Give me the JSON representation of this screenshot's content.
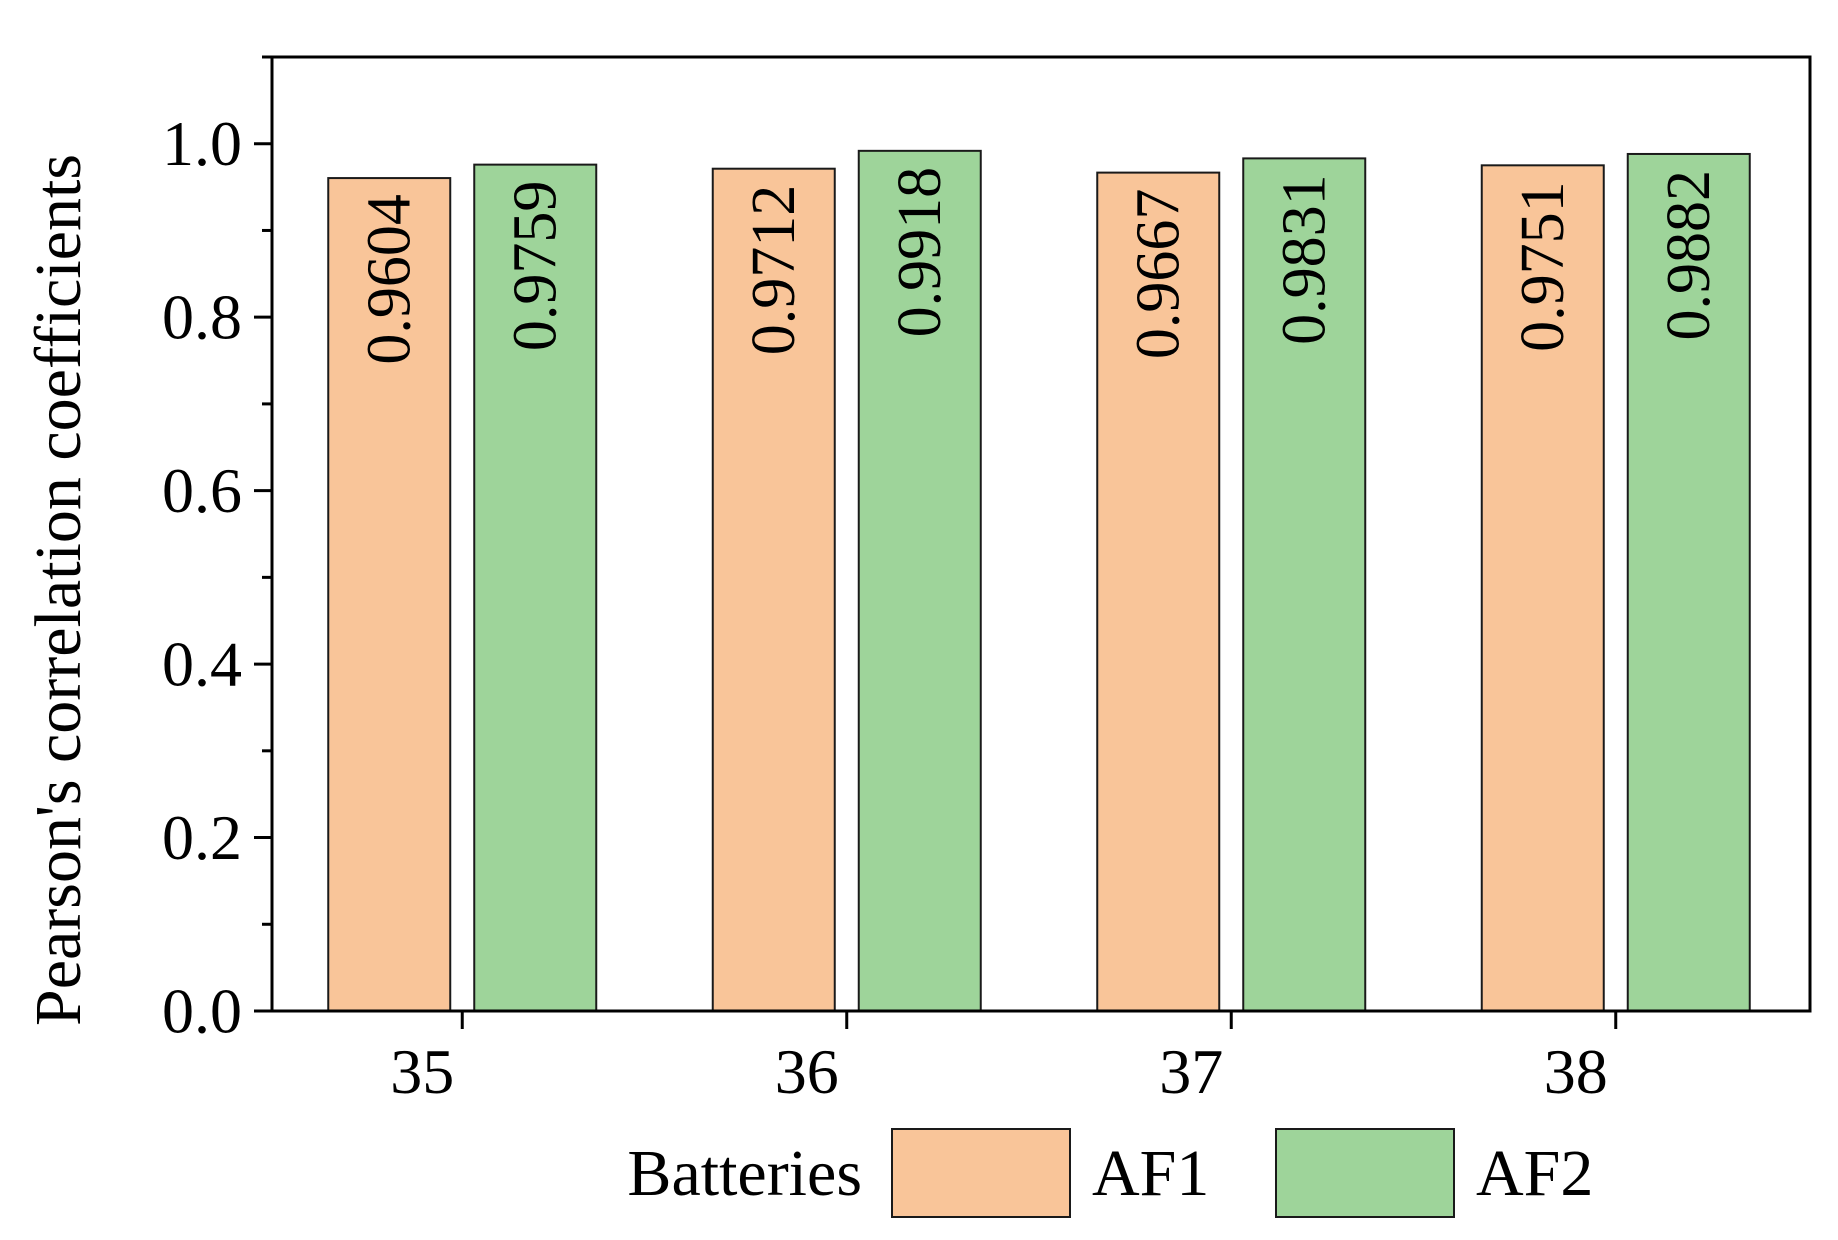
{
  "chart_data": {
    "type": "bar",
    "categories": [
      "35",
      "36",
      "37",
      "38"
    ],
    "series": [
      {
        "name": "AF1",
        "color": "#f9c599",
        "values": [
          0.9604,
          0.9712,
          0.9667,
          0.9751
        ],
        "labels": [
          "0.9604",
          "0.9712",
          "0.9667",
          "0.9751"
        ]
      },
      {
        "name": "AF2",
        "color": "#9ed49a",
        "values": [
          0.9759,
          0.9918,
          0.9831,
          0.9882
        ],
        "labels": [
          "0.9759",
          "0.9918",
          "0.9831",
          "0.9882"
        ]
      }
    ],
    "xlabel": "Batteries",
    "ylabel": "Pearson's correlation coefficients",
    "ylim": [
      0,
      1.1
    ],
    "yticks": [
      0.0,
      0.2,
      0.4,
      0.6,
      0.8,
      1.0
    ],
    "ytick_labels": [
      "0.0",
      "0.2",
      "0.4",
      "0.6",
      "0.8",
      "1.0"
    ],
    "grid": false,
    "legend_position": "bottom"
  }
}
